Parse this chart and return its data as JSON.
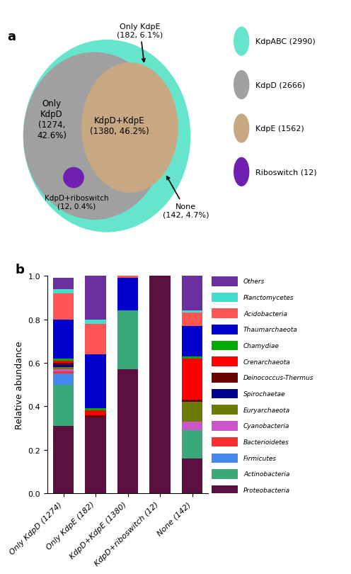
{
  "venn": {
    "kdpABC_color": "#66E5CC",
    "kdpD_color": "#A0A0A0",
    "kdpE_color": "#C8A882",
    "riboswitch_color": "#7020B0",
    "legend_items": [
      {
        "label": "KdpABC (2990)",
        "color": "#66E5CC"
      },
      {
        "label": "KdpD (2666)",
        "color": "#A0A0A0"
      },
      {
        "label": "KdpE (1562)",
        "color": "#C8A882"
      },
      {
        "label": "Riboswitch (12)",
        "color": "#7020B0"
      }
    ]
  },
  "bar": {
    "categories": [
      "Only KdpD (1274)",
      "Only KdpE (182)",
      "KdpD+KdpE (1380)",
      "KdpD+riboswitch (12)",
      "None (142)"
    ],
    "taxa": [
      "Proteobacteria",
      "Actinobacteria",
      "Firmicutes",
      "Bacterioidetes",
      "Cyanobacteria",
      "Euryarchaeota",
      "Spirochaetae",
      "Deinococcus-Thermus",
      "Crenarchaeota",
      "Chamydiae",
      "Thaumarchaeota",
      "Acidobacteria",
      "Planctomycetes",
      "Others"
    ],
    "colors": [
      "#5C1040",
      "#3AA878",
      "#4488EE",
      "#FF3030",
      "#CC55CC",
      "#6B7A00",
      "#000090",
      "#6B0000",
      "#FF0000",
      "#00AA00",
      "#0000CC",
      "#FF5555",
      "#44DDCC",
      "#6B2FA0"
    ],
    "data": {
      "Proteobacteria": [
        0.31,
        0.35,
        0.57,
        1.0,
        0.16
      ],
      "Actinobacteria": [
        0.19,
        0.0,
        0.27,
        0.0,
        0.13
      ],
      "Firmicutes": [
        0.05,
        0.0,
        0.0,
        0.0,
        0.0
      ],
      "Bacterioidetes": [
        0.01,
        0.0,
        0.0,
        0.0,
        0.0
      ],
      "Cyanobacteria": [
        0.01,
        0.0,
        0.0,
        0.0,
        0.04
      ],
      "Euryarchaeota": [
        0.01,
        0.0,
        0.0,
        0.0,
        0.09
      ],
      "Spirochaetae": [
        0.01,
        0.0,
        0.0,
        0.0,
        0.0
      ],
      "Deinococcus-Thermus": [
        0.01,
        0.01,
        0.0,
        0.0,
        0.01
      ],
      "Crenarchaeota": [
        0.01,
        0.02,
        0.0,
        0.0,
        0.19
      ],
      "Chamydiae": [
        0.01,
        0.01,
        0.0,
        0.0,
        0.01
      ],
      "Thaumarchaeota": [
        0.18,
        0.25,
        0.15,
        0.0,
        0.14
      ],
      "Acidobacteria": [
        0.12,
        0.14,
        0.01,
        0.0,
        0.06
      ],
      "Planctomycetes": [
        0.02,
        0.02,
        0.0,
        0.0,
        0.01
      ],
      "Others": [
        0.05,
        0.2,
        0.0,
        0.0,
        0.16
      ]
    },
    "ylabel": "Relative abundance",
    "ylim": [
      0.0,
      1.0
    ]
  }
}
